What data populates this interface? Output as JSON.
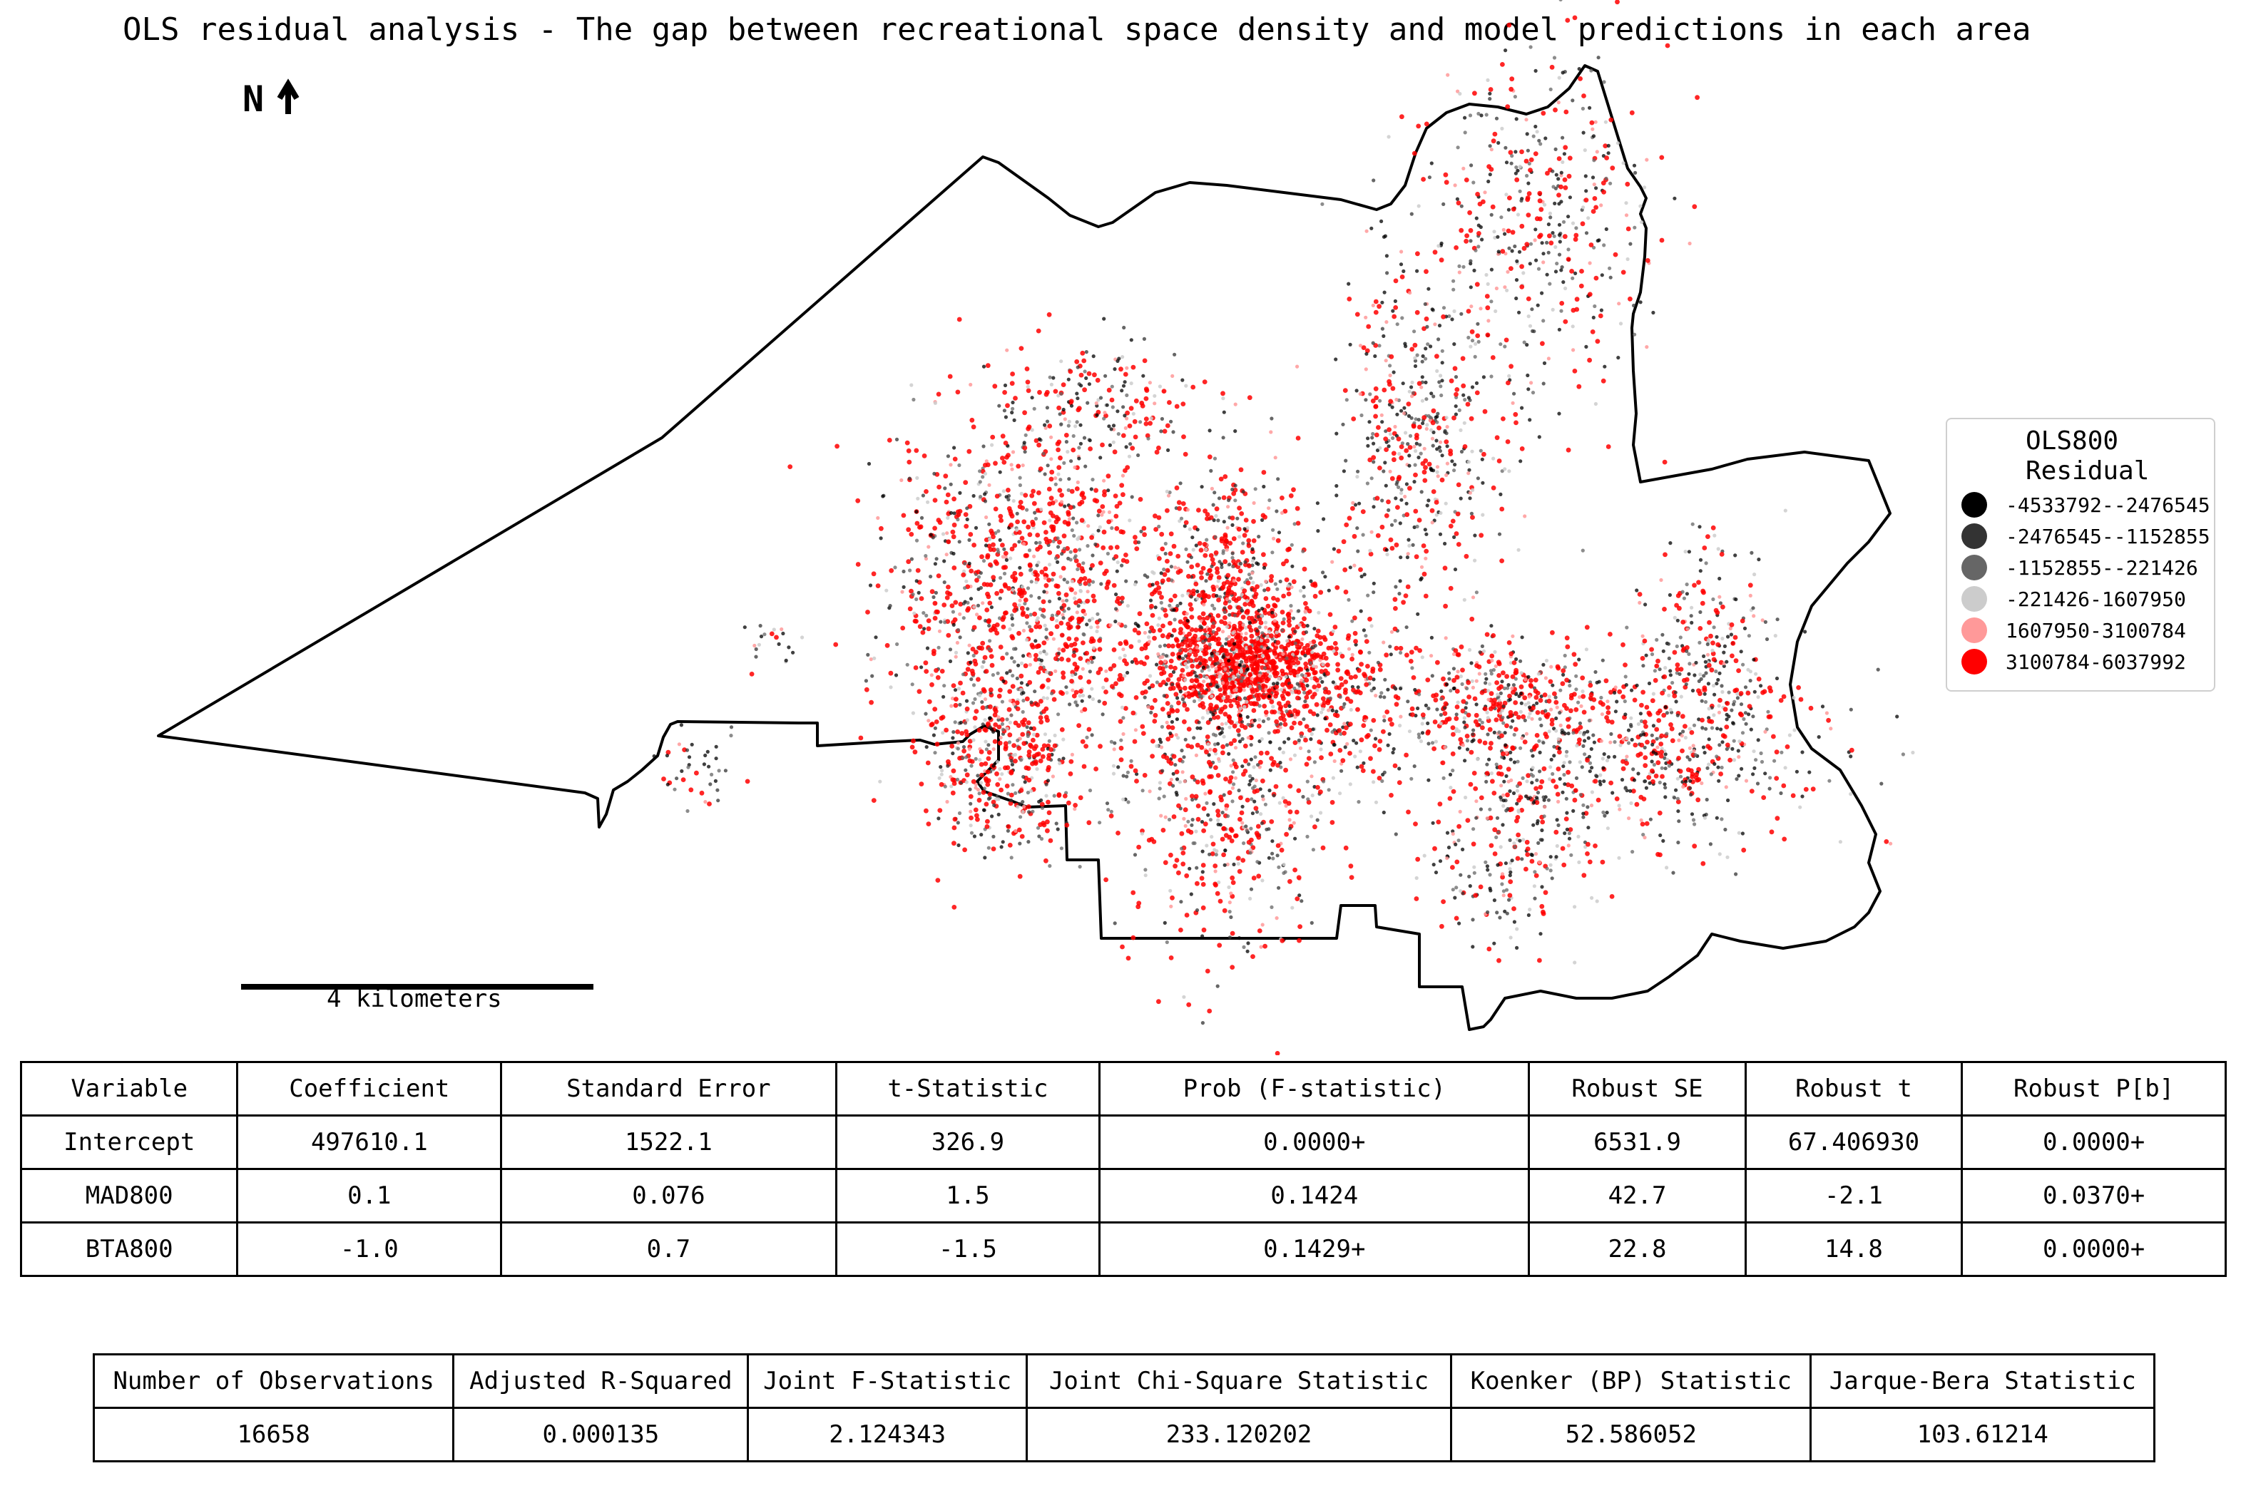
{
  "title": "OLS residual analysis - The gap between recreational space density and model predictions in each area",
  "north_arrow": "N",
  "scale_bar": {
    "label": "4 kilometers"
  },
  "legend": {
    "title_line1": "OLS800",
    "title_line2": "Residual",
    "items": [
      {
        "label": "-4533792--2476545",
        "color": "#000000"
      },
      {
        "label": "-2476545--1152855",
        "color": "#333333"
      },
      {
        "label": "-1152855--221426",
        "color": "#666666"
      },
      {
        "label": "-221426-1607950",
        "color": "#cccccc"
      },
      {
        "label": "1607950-3100784",
        "color": "#ff9999"
      },
      {
        "label": "3100784-6037992",
        "color": "#ff0000"
      }
    ]
  },
  "coefficients_table": {
    "headers": [
      "Variable",
      "Coefficient",
      "Standard Error",
      "t-Statistic",
      "Prob (F-statistic)",
      "Robust SE",
      "Robust t",
      "Robust P[b]"
    ],
    "rows": [
      [
        "Intercept",
        "497610.1",
        "1522.1",
        "326.9",
        "0.0000+",
        "6531.9",
        "67.406930",
        "0.0000+"
      ],
      [
        "MAD800",
        "0.1",
        "0.076",
        "1.5",
        "0.1424",
        "42.7",
        "-2.1",
        "0.0370+"
      ],
      [
        "BTA800",
        "-1.0",
        "0.7",
        "-1.5",
        "0.1429+",
        "22.8",
        "14.8",
        "0.0000+"
      ]
    ]
  },
  "diagnostics_table": {
    "headers": [
      "Number of Observations",
      "Adjusted R-Squared",
      "Joint F-Statistic",
      "Joint Chi-Square Statistic",
      "Koenker (BP) Statistic",
      "Jarque-Bera Statistic"
    ],
    "values": [
      "16658",
      "0.000135",
      "2.124343",
      "233.120202",
      "52.586052",
      "103.61214"
    ]
  }
}
